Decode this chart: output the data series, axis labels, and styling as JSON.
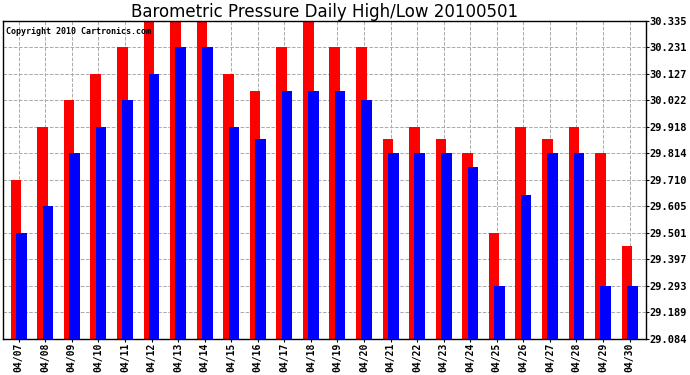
{
  "title": "Barometric Pressure Daily High/Low 20100501",
  "copyright": "Copyright 2010 Cartronics.com",
  "dates": [
    "04/07",
    "04/08",
    "04/09",
    "04/10",
    "04/11",
    "04/12",
    "04/13",
    "04/14",
    "04/15",
    "04/16",
    "04/17",
    "04/18",
    "04/19",
    "04/20",
    "04/21",
    "04/22",
    "04/23",
    "04/24",
    "04/25",
    "04/26",
    "04/27",
    "04/28",
    "04/29",
    "04/30"
  ],
  "highs": [
    29.71,
    29.918,
    30.022,
    30.127,
    30.231,
    30.335,
    30.335,
    30.335,
    30.127,
    30.06,
    30.231,
    30.335,
    30.231,
    30.231,
    29.87,
    29.918,
    29.87,
    29.814,
    29.501,
    29.918,
    29.87,
    29.918,
    29.814,
    29.45
  ],
  "lows": [
    29.501,
    29.605,
    29.814,
    29.918,
    30.022,
    30.127,
    30.231,
    30.231,
    29.918,
    29.87,
    30.06,
    30.06,
    30.06,
    30.022,
    29.814,
    29.814,
    29.814,
    29.76,
    29.293,
    29.65,
    29.814,
    29.814,
    29.293,
    29.293
  ],
  "high_color": "#FF0000",
  "low_color": "#0000FF",
  "ylim_min": 29.084,
  "ylim_max": 30.335,
  "yticks": [
    29.084,
    29.189,
    29.293,
    29.397,
    29.501,
    29.605,
    29.71,
    29.814,
    29.918,
    30.022,
    30.127,
    30.231,
    30.335
  ],
  "bg_color": "#FFFFFF",
  "grid_color": "#AAAAAA",
  "title_fontsize": 12,
  "bar_width": 0.4
}
